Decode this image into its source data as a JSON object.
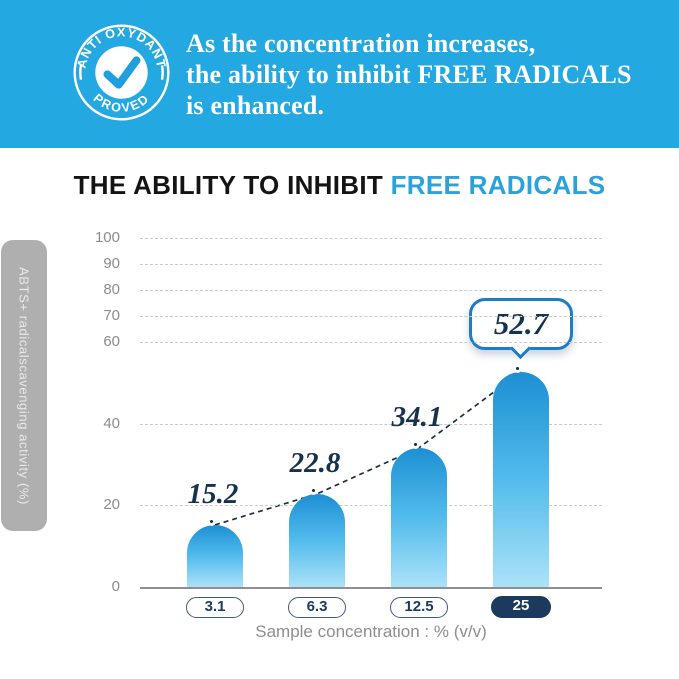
{
  "colors": {
    "band_blue": "#24A8E1",
    "accent_blue": "#2BA2DB",
    "navy": "#17324F",
    "pill_navy": "#1B3A5E",
    "bar_gradient_top": "#1D8FD3",
    "bar_gradient_bottom": "#ABE2F8",
    "tab_gray": "#AFAFAF",
    "callout_border": "#1C7CC6"
  },
  "hero": {
    "badge": {
      "top_text": "ANTI OXYDANT",
      "bottom_text": "PROVED",
      "icon": "check-icon"
    },
    "headline_lines": [
      "As the concentration increases,",
      "the ability to inhibit FREE RADICALS",
      "is enhanced."
    ]
  },
  "section_title": {
    "prefix": "THE ABILITY TO INHIBIT ",
    "accent": "FREE RADICALS"
  },
  "chart_data": {
    "type": "bar",
    "title": "THE ABILITY TO INHIBIT FREE RADICALS",
    "xlabel": "Sample concentration : % (v/v)",
    "ylabel": "ABTS+ radicalscavenging activity (%)",
    "categories": [
      "3.1",
      "6.3",
      "12.5",
      "25"
    ],
    "values": [
      15.2,
      22.8,
      34.1,
      52.7
    ],
    "value_labels": [
      "15.2",
      "22.8",
      "34.1",
      "52.7"
    ],
    "highlighted_category_index": 3,
    "yticks": [
      0,
      20,
      40,
      60,
      70,
      80,
      90,
      100
    ],
    "ylim": [
      0,
      100
    ],
    "grid": "horizontal-dashed",
    "legend": "none",
    "trend_line": "dashed line connecting bar-top dots",
    "axis_note": "y axis visually compressed above 60"
  }
}
